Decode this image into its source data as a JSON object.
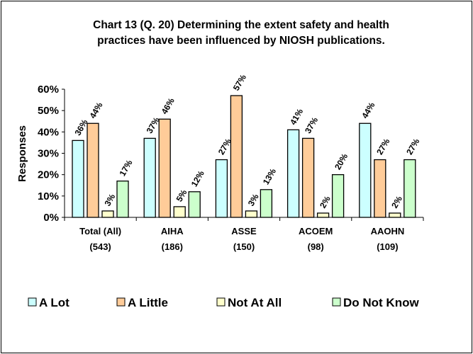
{
  "chart_data": {
    "type": "bar",
    "title_lines": [
      "Chart 13 (Q. 20)  Determining the extent safety and health",
      "practices have been influenced by NIOSH publications."
    ],
    "ylabel": "Responses",
    "xlabel": "",
    "ylim": [
      0,
      60
    ],
    "yticks": [
      "0%",
      "10%",
      "20%",
      "30%",
      "40%",
      "50%",
      "60%"
    ],
    "grid": false,
    "legend_position": "bottom",
    "categories": [
      [
        "Total (All)",
        "(543)"
      ],
      [
        "AIHA",
        "(186)"
      ],
      [
        "ASSE",
        "(150)"
      ],
      [
        "ACOEM",
        "(98)"
      ],
      [
        "AAOHN",
        "(109)"
      ]
    ],
    "series": [
      {
        "name": "A Lot",
        "color": "#CCFFFF",
        "values": [
          36,
          37,
          27,
          41,
          44
        ]
      },
      {
        "name": "A Little",
        "color": "#FFCC99",
        "values": [
          44,
          46,
          57,
          37,
          27
        ]
      },
      {
        "name": "Not At All",
        "color": "#FFFFCC",
        "values": [
          3,
          5,
          3,
          2,
          2
        ]
      },
      {
        "name": "Do Not Know",
        "color": "#CCFFCC",
        "values": [
          17,
          12,
          13,
          20,
          27
        ]
      }
    ],
    "data_label_suffix": "%"
  }
}
